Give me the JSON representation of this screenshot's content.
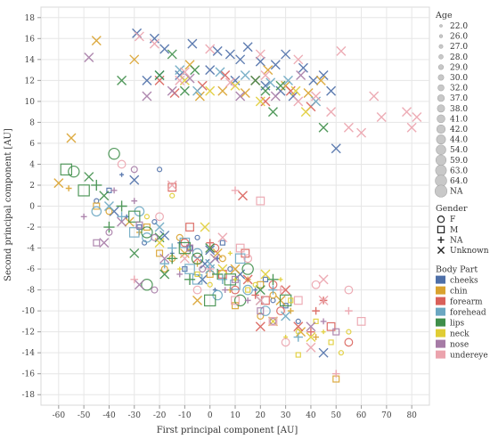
{
  "chart_data": {
    "type": "scatter",
    "xlabel": "First principal component [AU]",
    "ylabel": "Second principal component [AU]",
    "xlim": [
      -67,
      87
    ],
    "ylim": [
      -19,
      19
    ],
    "xticks": [
      -60,
      -50,
      -40,
      -30,
      -20,
      -10,
      0,
      10,
      20,
      30,
      40,
      50,
      60,
      70,
      80
    ],
    "yticks": [
      -18,
      -16,
      -14,
      -12,
      -10,
      -8,
      -6,
      -4,
      -2,
      0,
      2,
      4,
      6,
      8,
      10,
      12,
      14,
      16,
      18
    ],
    "grid": true,
    "legend_position": "right",
    "legend": {
      "age_title": "Age",
      "age_values": [
        "22.0",
        "26.0",
        "27.0",
        "28.0",
        "29.0",
        "30.0",
        "32.0",
        "37.0",
        "38.0",
        "41.0",
        "42.0",
        "44.0",
        "54.0",
        "59.0",
        "63.0",
        "64.0",
        "NA"
      ],
      "gender_title": "Gender",
      "gender_values": [
        "F",
        "M",
        "NA",
        "Unknown"
      ],
      "gender_markers": [
        "circle",
        "square",
        "plus",
        "cross"
      ],
      "body_part_title": "Body Part",
      "body_parts": [
        "cheeks",
        "chin",
        "forearm",
        "forehead",
        "lips",
        "neck",
        "nose",
        "undereye"
      ],
      "body_part_colors": [
        "#4e6fa8",
        "#d9a22e",
        "#d9605a",
        "#6ba7c2",
        "#3f8e4a",
        "#e0cd35",
        "#a67ba6",
        "#eba3ad"
      ]
    },
    "series": [
      {
        "body_part": "cheeks",
        "points": [
          [
            -29,
            16.5
          ],
          [
            -22,
            16
          ],
          [
            -18,
            15
          ],
          [
            -7,
            15.5
          ],
          [
            3,
            14.8
          ],
          [
            8,
            14.5
          ],
          [
            12,
            14
          ],
          [
            15,
            15.2
          ],
          [
            20,
            13.8
          ],
          [
            26,
            13.5
          ],
          [
            30,
            14.5
          ],
          [
            37,
            13.2
          ],
          [
            45,
            12.5
          ],
          [
            -25,
            12
          ],
          [
            -12,
            12.5
          ],
          [
            0,
            13
          ],
          [
            10,
            12
          ],
          [
            22,
            11.5
          ],
          [
            28,
            11
          ],
          [
            33,
            10.5
          ],
          [
            41,
            12
          ],
          [
            48,
            11
          ],
          [
            50,
            5.5
          ],
          [
            -20,
            3.5
          ],
          [
            -30,
            2.5
          ],
          [
            -35,
            3
          ],
          [
            -40,
            1.5
          ],
          [
            -45,
            0.5
          ],
          [
            -38,
            -0.5
          ],
          [
            -33,
            -1
          ],
          [
            -28,
            -2
          ],
          [
            -22,
            -1.5
          ],
          [
            -18,
            -2.8
          ],
          [
            -12,
            -3.5
          ],
          [
            -8,
            -4
          ],
          [
            -5,
            -3
          ],
          [
            0,
            -4.2
          ],
          [
            3,
            -5
          ],
          [
            5,
            -3.5
          ],
          [
            8,
            -6
          ],
          [
            -2,
            -5.5
          ],
          [
            -15,
            -4.5
          ],
          [
            -10,
            -6
          ],
          [
            -26,
            -3.5
          ],
          [
            12,
            -6.5
          ],
          [
            18,
            -8
          ],
          [
            22,
            -7
          ],
          [
            25,
            -9
          ],
          [
            -3,
            -7
          ],
          [
            2,
            -8
          ],
          [
            30,
            -9.5
          ],
          [
            35,
            -11
          ],
          [
            45,
            -14
          ]
        ]
      },
      {
        "body_part": "chin",
        "points": [
          [
            -45,
            15.8
          ],
          [
            -30,
            14
          ],
          [
            -8,
            13.5
          ],
          [
            -4,
            10.5
          ],
          [
            5,
            11
          ],
          [
            14,
            10.8
          ],
          [
            23,
            13
          ],
          [
            30,
            11.5
          ],
          [
            39,
            10.8
          ],
          [
            44,
            12
          ],
          [
            -55,
            6.5
          ],
          [
            -60,
            2.2
          ],
          [
            -56,
            1.7
          ],
          [
            -45,
            0
          ],
          [
            -40,
            -0.5
          ],
          [
            -32,
            -1.5
          ],
          [
            -28,
            -2.5
          ],
          [
            -20,
            -4.5
          ],
          [
            -15,
            -5
          ],
          [
            -10,
            -4.5
          ],
          [
            -5,
            -5.5
          ],
          [
            0,
            -6.5
          ],
          [
            5,
            -5
          ],
          [
            10,
            -6
          ],
          [
            15,
            -7
          ],
          [
            20,
            -7.5
          ],
          [
            25,
            -8.5
          ],
          [
            28,
            -9
          ],
          [
            32,
            -10
          ],
          [
            10,
            -9.5
          ],
          [
            20,
            -10.5
          ],
          [
            36,
            -12
          ],
          [
            42,
            -12.5
          ],
          [
            50,
            -16.5
          ],
          [
            -18,
            -6
          ],
          [
            -5,
            -9
          ],
          [
            8,
            -8
          ],
          [
            -25,
            -2
          ],
          [
            -12,
            -3
          ],
          [
            3,
            -4.5
          ]
        ]
      },
      {
        "body_part": "forearm",
        "points": [
          [
            -20,
            12
          ],
          [
            -14,
            10.8
          ],
          [
            -3,
            11.5
          ],
          [
            6,
            12.5
          ],
          [
            18,
            12
          ],
          [
            22,
            10
          ],
          [
            32,
            11
          ],
          [
            40,
            9.5
          ],
          [
            -15,
            1.8
          ],
          [
            -10,
            -3.5
          ],
          [
            -5,
            -5
          ],
          [
            0,
            -3.5
          ],
          [
            5,
            -6.5
          ],
          [
            10,
            -8
          ],
          [
            15,
            -7
          ],
          [
            18,
            -8.5
          ],
          [
            22,
            -9
          ],
          [
            28,
            -10
          ],
          [
            35,
            -11.5
          ],
          [
            40,
            -12
          ],
          [
            14,
            -4.5
          ],
          [
            25,
            -7.5
          ],
          [
            30,
            -8
          ],
          [
            42,
            -10
          ],
          [
            48,
            -11.5
          ],
          [
            55,
            -13
          ],
          [
            20,
            -11.5
          ],
          [
            45,
            -9
          ],
          [
            -8,
            -2
          ],
          [
            2,
            -4
          ],
          [
            13,
            1
          ]
        ]
      },
      {
        "body_part": "forehead",
        "points": [
          [
            -20,
            12.5
          ],
          [
            -12,
            13
          ],
          [
            -5,
            11
          ],
          [
            4,
            12.8
          ],
          [
            14,
            12.5
          ],
          [
            24,
            11.8
          ],
          [
            31,
            12
          ],
          [
            42,
            10
          ],
          [
            -45,
            -0.5
          ],
          [
            -40,
            0
          ],
          [
            -35,
            -1
          ],
          [
            -30,
            -2.5
          ],
          [
            -25,
            -3
          ],
          [
            -20,
            -2
          ],
          [
            -15,
            -4
          ],
          [
            -10,
            -3.5
          ],
          [
            -5,
            -4.5
          ],
          [
            0,
            -5.5
          ],
          [
            5,
            -7
          ],
          [
            10,
            -7.5
          ],
          [
            15,
            -8
          ],
          [
            20,
            -9
          ],
          [
            25,
            -8
          ],
          [
            -8,
            -6
          ],
          [
            3,
            -8.5
          ],
          [
            0,
            -6
          ],
          [
            -18,
            -5.5
          ],
          [
            12,
            -5
          ],
          [
            22,
            -10
          ],
          [
            30,
            -10.5
          ],
          [
            35,
            -12.5
          ],
          [
            -5,
            -7
          ],
          [
            -28,
            -0.5
          ]
        ]
      },
      {
        "body_part": "lips",
        "points": [
          [
            -35,
            12
          ],
          [
            -20,
            12.5
          ],
          [
            -15,
            14.5
          ],
          [
            -10,
            11
          ],
          [
            -6,
            13
          ],
          [
            18,
            12
          ],
          [
            22,
            11
          ],
          [
            25,
            9
          ],
          [
            28,
            11.5
          ],
          [
            45,
            7.5
          ],
          [
            -57,
            3.5
          ],
          [
            -54,
            3.3
          ],
          [
            -48,
            2.8
          ],
          [
            -45,
            2
          ],
          [
            -50,
            1.5
          ],
          [
            -38,
            5
          ],
          [
            -42,
            1
          ],
          [
            -35,
            0
          ],
          [
            -30,
            -1
          ],
          [
            -25,
            -2.5
          ],
          [
            -20,
            -3
          ],
          [
            -15,
            -5
          ],
          [
            -10,
            -4
          ],
          [
            -5,
            -5
          ],
          [
            0,
            -4
          ],
          [
            3,
            -6.5
          ],
          [
            8,
            -7
          ],
          [
            15,
            -6
          ],
          [
            20,
            -8
          ],
          [
            25,
            -7
          ],
          [
            30,
            -9
          ],
          [
            -25,
            -7.5
          ],
          [
            -18,
            -6.5
          ],
          [
            -8,
            -7
          ],
          [
            0,
            -9
          ],
          [
            12,
            -9
          ],
          [
            -30,
            -4.5
          ],
          [
            -40,
            -2
          ]
        ]
      },
      {
        "body_part": "neck",
        "points": [
          [
            -10,
            12
          ],
          [
            0,
            11
          ],
          [
            10,
            11.5
          ],
          [
            20,
            10
          ],
          [
            34,
            11
          ],
          [
            38,
            9
          ],
          [
            -15,
            1
          ],
          [
            -20,
            -3.5
          ],
          [
            -12,
            -6
          ],
          [
            -5,
            -6.5
          ],
          [
            0,
            -7.5
          ],
          [
            5,
            -6
          ],
          [
            10,
            -7
          ],
          [
            15,
            -8
          ],
          [
            18,
            -7.5
          ],
          [
            22,
            -6.5
          ],
          [
            28,
            -7
          ],
          [
            32,
            -9
          ],
          [
            35,
            -12
          ],
          [
            40,
            -12.5
          ],
          [
            45,
            -12
          ],
          [
            48,
            -13
          ],
          [
            52,
            -14
          ],
          [
            25,
            -11
          ],
          [
            30,
            -12.5
          ],
          [
            42,
            -11
          ],
          [
            -25,
            -1
          ],
          [
            -2,
            -2
          ],
          [
            8,
            -4.5
          ],
          [
            35,
            -14.2
          ],
          [
            55,
            -12
          ]
        ]
      },
      {
        "body_part": "nose",
        "points": [
          [
            -48,
            14.2
          ],
          [
            -25,
            10.5
          ],
          [
            -15,
            11
          ],
          [
            -8,
            12.2
          ],
          [
            12,
            10.5
          ],
          [
            26,
            10.5
          ],
          [
            36,
            12.5
          ],
          [
            -50,
            -1
          ],
          [
            -45,
            -3.5
          ],
          [
            -40,
            -2.5
          ],
          [
            -35,
            -1.5
          ],
          [
            -30,
            0.5
          ],
          [
            -28,
            -1.8
          ],
          [
            -22,
            -3
          ],
          [
            -18,
            -5
          ],
          [
            -12,
            -6.5
          ],
          [
            -8,
            -4
          ],
          [
            -3,
            -6
          ],
          [
            2,
            -5
          ],
          [
            6,
            -8
          ],
          [
            10,
            -7
          ],
          [
            -22,
            -8
          ],
          [
            -28,
            -7.5
          ],
          [
            15,
            -9
          ],
          [
            20,
            -10
          ],
          [
            25,
            -11
          ],
          [
            40,
            -11.5
          ],
          [
            45,
            -11
          ],
          [
            50,
            -12
          ],
          [
            -30,
            3.5
          ],
          [
            -42,
            -3.5
          ],
          [
            -38,
            1.5
          ]
        ]
      },
      {
        "body_part": "undereye",
        "points": [
          [
            -28,
            16.2
          ],
          [
            -22,
            15.5
          ],
          [
            0,
            15
          ],
          [
            20,
            14.5
          ],
          [
            35,
            14
          ],
          [
            52,
            14.8
          ],
          [
            -12,
            12
          ],
          [
            8,
            11.8
          ],
          [
            22,
            12.5
          ],
          [
            35,
            10
          ],
          [
            42,
            10.5
          ],
          [
            48,
            9
          ],
          [
            55,
            7.5
          ],
          [
            60,
            7
          ],
          [
            65,
            10.5
          ],
          [
            68,
            8.5
          ],
          [
            78,
            9
          ],
          [
            80,
            7.5
          ],
          [
            82,
            8.5
          ],
          [
            -10,
            12.8
          ],
          [
            -35,
            4
          ],
          [
            -15,
            2
          ],
          [
            10,
            1.5
          ],
          [
            20,
            0.5
          ],
          [
            -20,
            -1
          ],
          [
            -10,
            -5
          ],
          [
            0,
            -6
          ],
          [
            10,
            -9
          ],
          [
            15,
            -5
          ],
          [
            20,
            -9
          ],
          [
            28,
            -8
          ],
          [
            35,
            -9
          ],
          [
            42,
            -7.5
          ],
          [
            45,
            -9
          ],
          [
            55,
            -10
          ],
          [
            60,
            -11
          ],
          [
            -5,
            -8
          ],
          [
            5,
            -3
          ],
          [
            -30,
            -7
          ],
          [
            25,
            -11
          ],
          [
            30,
            -13
          ],
          [
            40,
            -13.5
          ],
          [
            50,
            -16
          ],
          [
            12,
            -4
          ],
          [
            55,
            -8
          ],
          [
            45,
            -7
          ]
        ]
      }
    ]
  }
}
